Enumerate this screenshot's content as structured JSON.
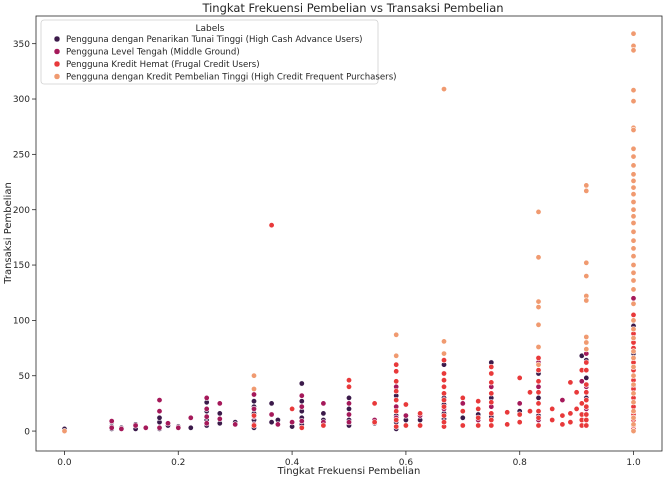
{
  "chart_data": {
    "type": "scatter",
    "title": "Tingkat Frekuensi  Pembelian vs Transaksi Pembelian",
    "xlabel": "Tingkat Frekuensi  Pembelian",
    "ylabel": "Transaksi Pembelian",
    "xlim": [
      -0.05,
      1.05
    ],
    "ylim": [
      -18,
      375
    ],
    "xticks": [
      0.0,
      0.2,
      0.4,
      0.6,
      0.8,
      1.0
    ],
    "xtick_labels": [
      "0.0",
      "0.2",
      "0.4",
      "0.6",
      "0.8",
      "1.0"
    ],
    "yticks": [
      0,
      50,
      100,
      150,
      200,
      250,
      300,
      350
    ],
    "ytick_labels": [
      "0",
      "50",
      "100",
      "150",
      "200",
      "250",
      "300",
      "350"
    ],
    "grid": false,
    "legend": {
      "title": "Labels",
      "placement": "top-left"
    },
    "series": [
      {
        "name": "Pengguna dengan Penarikan Tunai Tinggi (High Cash Advance Users)",
        "color": "#3b1a4a",
        "points": [
          [
            0.0,
            0
          ],
          [
            0.0,
            2
          ],
          [
            0.083,
            2
          ],
          [
            0.083,
            8
          ],
          [
            0.083,
            4
          ],
          [
            0.1,
            3
          ],
          [
            0.125,
            2
          ],
          [
            0.125,
            6
          ],
          [
            0.167,
            2
          ],
          [
            0.167,
            8
          ],
          [
            0.167,
            12
          ],
          [
            0.182,
            5
          ],
          [
            0.2,
            4
          ],
          [
            0.222,
            3
          ],
          [
            0.25,
            5
          ],
          [
            0.25,
            10
          ],
          [
            0.25,
            18
          ],
          [
            0.25,
            26
          ],
          [
            0.273,
            7
          ],
          [
            0.273,
            16
          ],
          [
            0.3,
            8
          ],
          [
            0.333,
            3
          ],
          [
            0.333,
            10
          ],
          [
            0.333,
            16
          ],
          [
            0.333,
            22
          ],
          [
            0.333,
            27
          ],
          [
            0.364,
            25
          ],
          [
            0.364,
            8
          ],
          [
            0.375,
            10
          ],
          [
            0.4,
            4
          ],
          [
            0.417,
            6
          ],
          [
            0.417,
            12
          ],
          [
            0.417,
            18
          ],
          [
            0.417,
            27
          ],
          [
            0.417,
            43
          ],
          [
            0.455,
            10
          ],
          [
            0.455,
            16
          ],
          [
            0.5,
            5
          ],
          [
            0.5,
            10
          ],
          [
            0.5,
            20
          ],
          [
            0.5,
            30
          ],
          [
            0.545,
            7
          ],
          [
            0.583,
            8
          ],
          [
            0.583,
            14
          ],
          [
            0.583,
            32
          ],
          [
            0.583,
            2
          ],
          [
            0.6,
            10
          ],
          [
            0.625,
            10
          ],
          [
            0.667,
            11
          ],
          [
            0.667,
            16
          ],
          [
            0.667,
            24
          ],
          [
            0.667,
            60
          ],
          [
            0.667,
            30
          ],
          [
            0.7,
            12
          ],
          [
            0.727,
            15
          ],
          [
            0.75,
            13
          ],
          [
            0.75,
            30
          ],
          [
            0.75,
            62
          ],
          [
            0.8,
            18
          ],
          [
            0.833,
            14
          ],
          [
            0.833,
            30
          ],
          [
            0.833,
            52
          ],
          [
            0.909,
            68
          ],
          [
            0.917,
            30
          ],
          [
            0.917,
            48
          ],
          [
            0.917,
            64
          ],
          [
            1.0,
            95
          ],
          [
            1.0,
            70
          ],
          [
            1.0,
            40
          ]
        ]
      },
      {
        "name": "Pengguna Level Tengah (Middle Ground)",
        "color": "#a5195a",
        "points": [
          [
            0.083,
            3
          ],
          [
            0.083,
            9
          ],
          [
            0.1,
            2
          ],
          [
            0.125,
            5
          ],
          [
            0.143,
            3
          ],
          [
            0.167,
            3
          ],
          [
            0.167,
            18
          ],
          [
            0.167,
            28
          ],
          [
            0.182,
            7
          ],
          [
            0.2,
            3
          ],
          [
            0.222,
            12
          ],
          [
            0.25,
            7
          ],
          [
            0.25,
            13
          ],
          [
            0.25,
            20
          ],
          [
            0.25,
            30
          ],
          [
            0.273,
            11
          ],
          [
            0.273,
            25
          ],
          [
            0.3,
            6
          ],
          [
            0.333,
            6
          ],
          [
            0.333,
            13
          ],
          [
            0.333,
            20
          ],
          [
            0.333,
            33
          ],
          [
            0.364,
            15
          ],
          [
            0.375,
            6
          ],
          [
            0.4,
            8
          ],
          [
            0.417,
            9
          ],
          [
            0.417,
            22
          ],
          [
            0.417,
            32
          ],
          [
            0.455,
            8
          ],
          [
            0.455,
            25
          ],
          [
            0.5,
            8
          ],
          [
            0.5,
            15
          ],
          [
            0.5,
            25
          ],
          [
            0.545,
            10
          ],
          [
            0.583,
            12
          ],
          [
            0.583,
            22
          ],
          [
            0.583,
            40
          ],
          [
            0.6,
            14
          ],
          [
            0.625,
            14
          ],
          [
            0.667,
            8
          ],
          [
            0.667,
            20
          ],
          [
            0.667,
            40
          ],
          [
            0.7,
            25
          ],
          [
            0.727,
            10
          ],
          [
            0.75,
            22
          ],
          [
            0.75,
            40
          ],
          [
            0.8,
            25
          ],
          [
            0.833,
            10
          ],
          [
            0.833,
            40
          ],
          [
            0.833,
            62
          ],
          [
            0.875,
            28
          ],
          [
            0.909,
            45
          ],
          [
            0.917,
            20
          ],
          [
            0.917,
            40
          ],
          [
            0.917,
            70
          ],
          [
            1.0,
            50
          ],
          [
            1.0,
            120
          ],
          [
            1.0,
            10
          ]
        ]
      },
      {
        "name": "Pengguna Kredit Hemat (Frugal Credit Users)",
        "color": "#e8393a",
        "points": [
          [
            0.364,
            186
          ],
          [
            0.333,
            14
          ],
          [
            0.333,
            5
          ],
          [
            0.4,
            20
          ],
          [
            0.417,
            3
          ],
          [
            0.455,
            5
          ],
          [
            0.5,
            40
          ],
          [
            0.5,
            46
          ],
          [
            0.545,
            8
          ],
          [
            0.545,
            25
          ],
          [
            0.583,
            4
          ],
          [
            0.583,
            10
          ],
          [
            0.583,
            18
          ],
          [
            0.583,
            28
          ],
          [
            0.583,
            36
          ],
          [
            0.583,
            45
          ],
          [
            0.583,
            54
          ],
          [
            0.583,
            60
          ],
          [
            0.6,
            5
          ],
          [
            0.6,
            24
          ],
          [
            0.625,
            5
          ],
          [
            0.625,
            16
          ],
          [
            0.667,
            4
          ],
          [
            0.667,
            8
          ],
          [
            0.667,
            14
          ],
          [
            0.667,
            22
          ],
          [
            0.667,
            28
          ],
          [
            0.667,
            34
          ],
          [
            0.667,
            40
          ],
          [
            0.667,
            46
          ],
          [
            0.667,
            52
          ],
          [
            0.667,
            64
          ],
          [
            0.7,
            5
          ],
          [
            0.7,
            18
          ],
          [
            0.7,
            30
          ],
          [
            0.727,
            5
          ],
          [
            0.727,
            12
          ],
          [
            0.727,
            20
          ],
          [
            0.727,
            27
          ],
          [
            0.75,
            5
          ],
          [
            0.75,
            10
          ],
          [
            0.75,
            16
          ],
          [
            0.75,
            26
          ],
          [
            0.75,
            34
          ],
          [
            0.75,
            44
          ],
          [
            0.75,
            52
          ],
          [
            0.75,
            58
          ],
          [
            0.778,
            6
          ],
          [
            0.778,
            17
          ],
          [
            0.8,
            8
          ],
          [
            0.8,
            15
          ],
          [
            0.8,
            48
          ],
          [
            0.818,
            18
          ],
          [
            0.818,
            35
          ],
          [
            0.833,
            5
          ],
          [
            0.833,
            12
          ],
          [
            0.833,
            18
          ],
          [
            0.833,
            25
          ],
          [
            0.833,
            35
          ],
          [
            0.833,
            45
          ],
          [
            0.833,
            55
          ],
          [
            0.833,
            66
          ],
          [
            0.857,
            10
          ],
          [
            0.857,
            20
          ],
          [
            0.875,
            6
          ],
          [
            0.875,
            14
          ],
          [
            0.889,
            8
          ],
          [
            0.889,
            16
          ],
          [
            0.889,
            44
          ],
          [
            0.9,
            20
          ],
          [
            0.9,
            35
          ],
          [
            0.909,
            5
          ],
          [
            0.909,
            10
          ],
          [
            0.909,
            15
          ],
          [
            0.909,
            25
          ],
          [
            0.909,
            55
          ],
          [
            0.917,
            5
          ],
          [
            0.917,
            10
          ],
          [
            0.917,
            15
          ],
          [
            0.917,
            22
          ],
          [
            0.917,
            28
          ],
          [
            0.917,
            35
          ],
          [
            0.917,
            42
          ],
          [
            0.917,
            55
          ],
          [
            0.917,
            62
          ],
          [
            1.0,
            2
          ],
          [
            1.0,
            5
          ],
          [
            1.0,
            10
          ],
          [
            1.0,
            15
          ],
          [
            1.0,
            22
          ],
          [
            1.0,
            30
          ],
          [
            1.0,
            38
          ],
          [
            1.0,
            46
          ],
          [
            1.0,
            55
          ],
          [
            1.0,
            62
          ],
          [
            1.0,
            75
          ],
          [
            1.0,
            80
          ],
          [
            1.0,
            88
          ],
          [
            1.0,
            105
          ]
        ]
      },
      {
        "name": "Pengguna dengan Kredit Pembelian Tinggi (High Credit Frequent Purchasers)",
        "color": "#f09a70",
        "points": [
          [
            0.0,
            0
          ],
          [
            0.333,
            50
          ],
          [
            0.333,
            38
          ],
          [
            0.583,
            87
          ],
          [
            0.583,
            68
          ],
          [
            0.667,
            309
          ],
          [
            0.667,
            81
          ],
          [
            0.667,
            70
          ],
          [
            0.833,
            198
          ],
          [
            0.833,
            157
          ],
          [
            0.833,
            117
          ],
          [
            0.833,
            112
          ],
          [
            0.833,
            96
          ],
          [
            0.833,
            76
          ],
          [
            0.833,
            60
          ],
          [
            0.917,
            222
          ],
          [
            0.917,
            217
          ],
          [
            0.917,
            152
          ],
          [
            0.917,
            140
          ],
          [
            0.917,
            122
          ],
          [
            0.917,
            118
          ],
          [
            0.917,
            85
          ],
          [
            0.917,
            80
          ],
          [
            0.917,
            74
          ],
          [
            1.0,
            359
          ],
          [
            1.0,
            348
          ],
          [
            1.0,
            344
          ],
          [
            1.0,
            308
          ],
          [
            1.0,
            298
          ],
          [
            1.0,
            274
          ],
          [
            1.0,
            272
          ],
          [
            1.0,
            255
          ],
          [
            1.0,
            248
          ],
          [
            1.0,
            240
          ],
          [
            1.0,
            232
          ],
          [
            1.0,
            226
          ],
          [
            1.0,
            220
          ],
          [
            1.0,
            214
          ],
          [
            1.0,
            207
          ],
          [
            1.0,
            200
          ],
          [
            1.0,
            194
          ],
          [
            1.0,
            188
          ],
          [
            1.0,
            180
          ],
          [
            1.0,
            172
          ],
          [
            1.0,
            165
          ],
          [
            1.0,
            158
          ],
          [
            1.0,
            150
          ],
          [
            1.0,
            143
          ],
          [
            1.0,
            136
          ],
          [
            1.0,
            128
          ],
          [
            1.0,
            115
          ],
          [
            1.0,
            100
          ],
          [
            1.0,
            92
          ],
          [
            1.0,
            84
          ],
          [
            1.0,
            72
          ],
          [
            1.0,
            66
          ],
          [
            1.0,
            58
          ],
          [
            1.0,
            50
          ],
          [
            1.0,
            42
          ],
          [
            1.0,
            34
          ],
          [
            1.0,
            26
          ],
          [
            1.0,
            18
          ],
          [
            1.0,
            12
          ],
          [
            1.0,
            6
          ],
          [
            1.0,
            0
          ]
        ]
      }
    ]
  }
}
